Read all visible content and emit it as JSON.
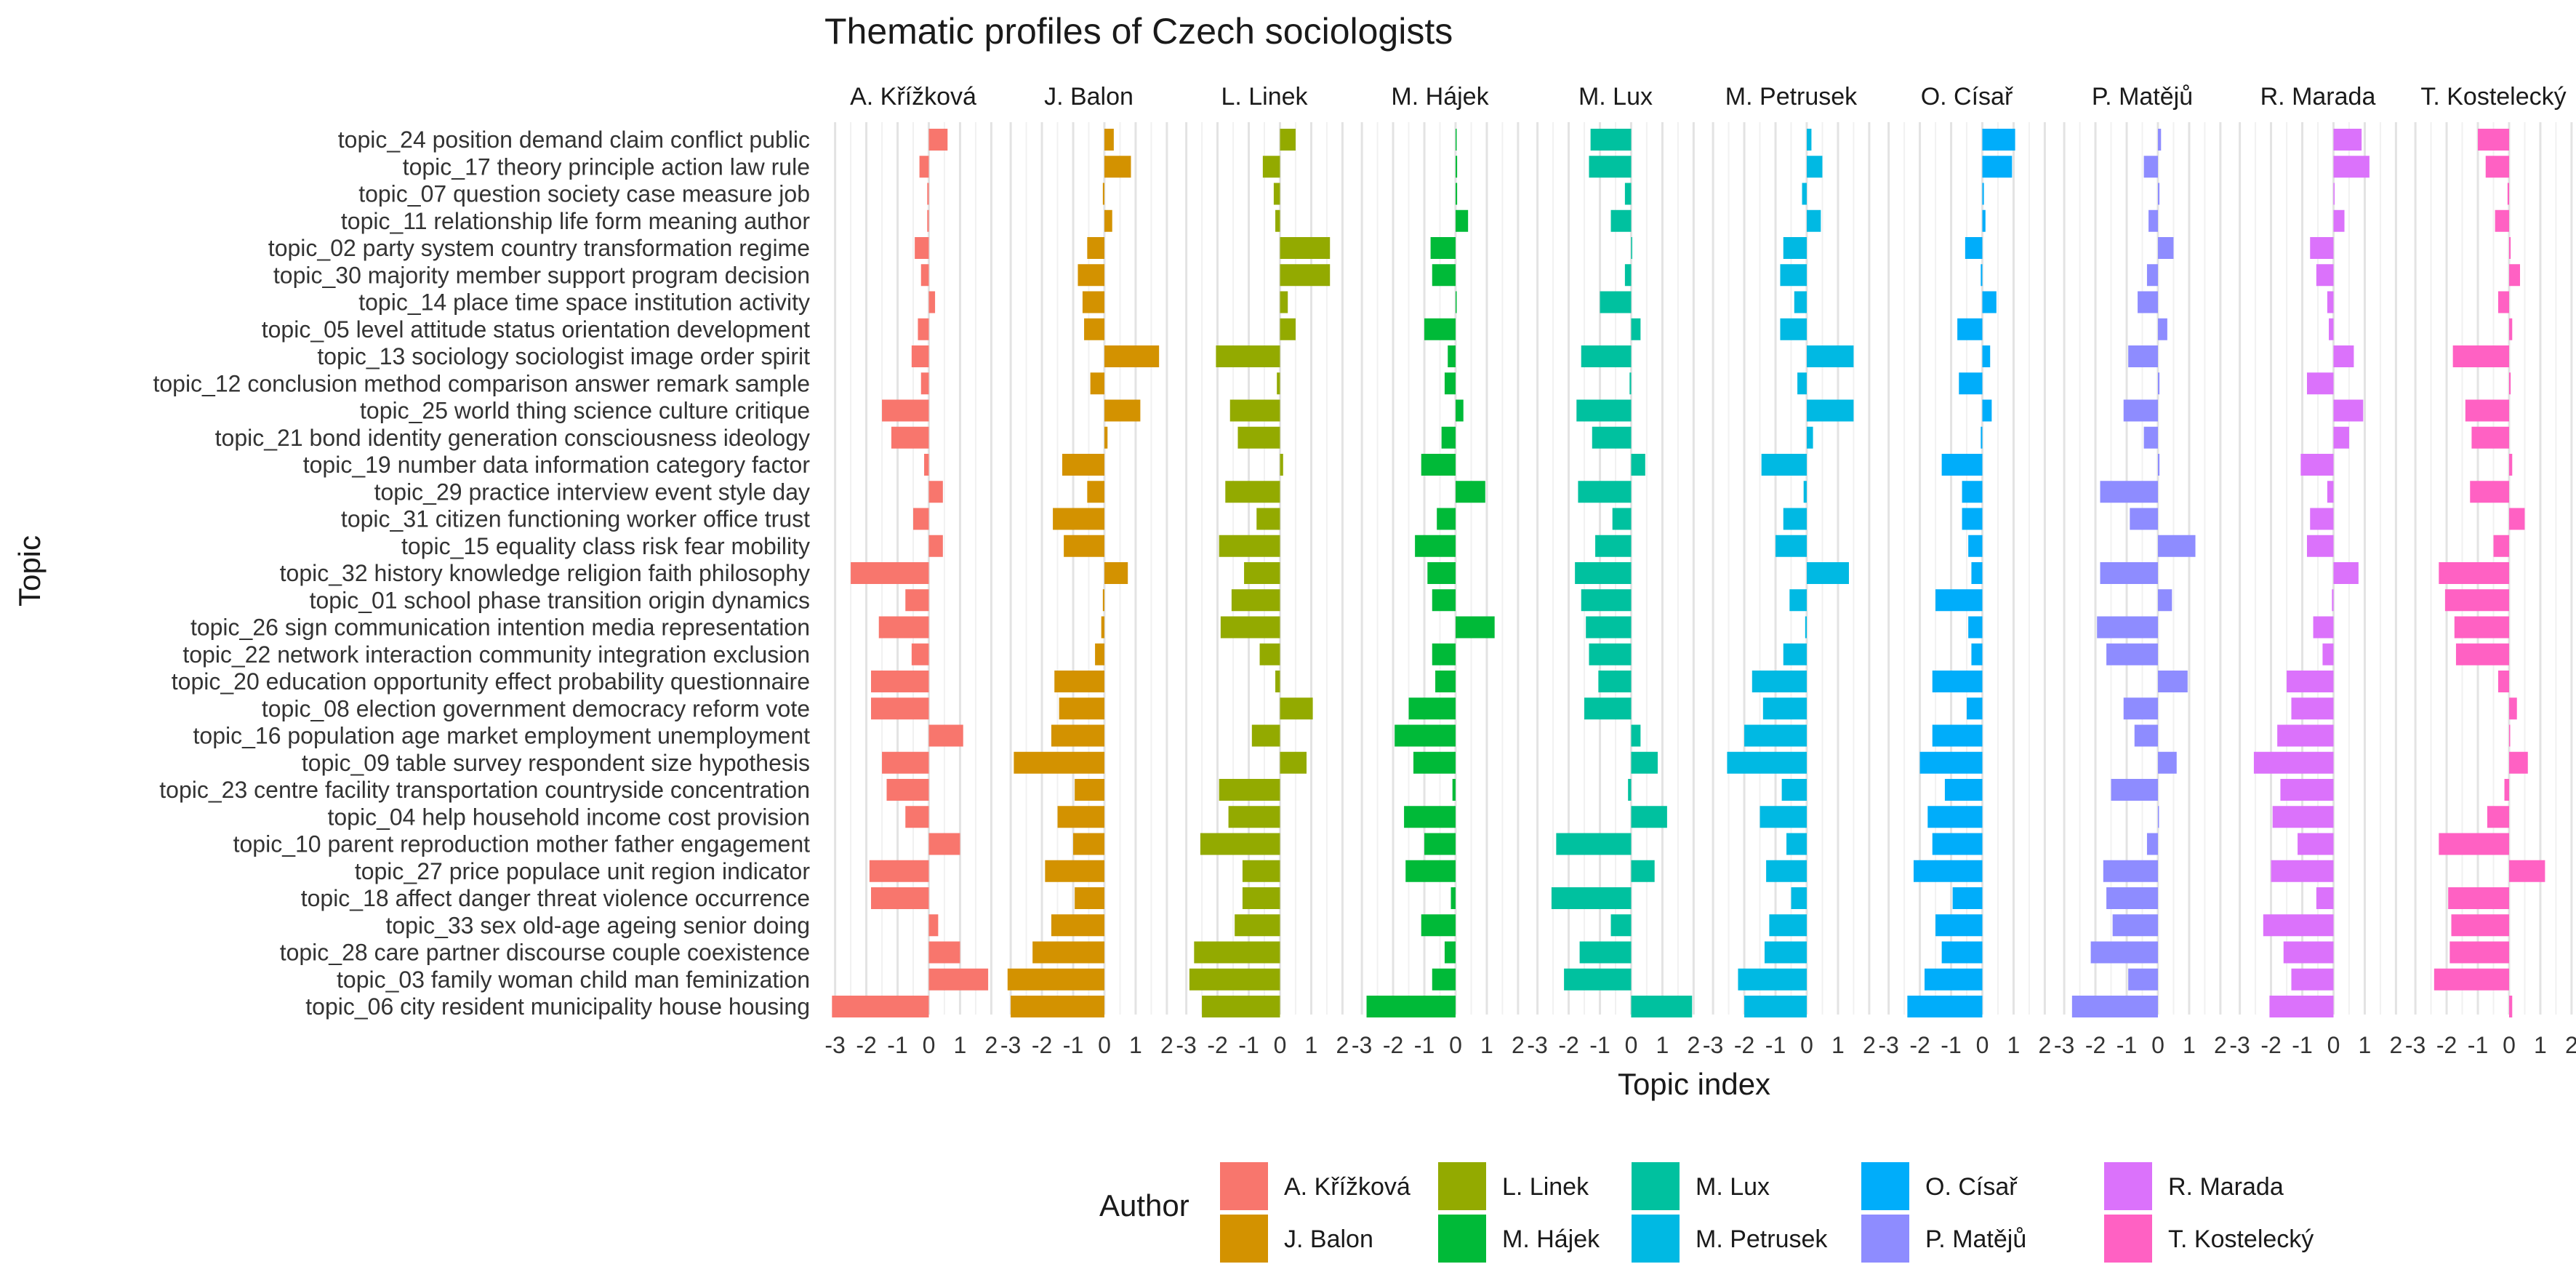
{
  "chart_data": {
    "type": "bar",
    "orientation": "horizontal",
    "title": "Thematic profiles of Czech sociologists",
    "xlabel": "Topic index",
    "ylabel": "Topic",
    "xlim": [
      -3.2,
      2.2
    ],
    "xticks": [
      -3,
      -2,
      -1,
      0,
      1,
      2
    ],
    "grid": true,
    "legend_title": "Author",
    "legend_position": "bottom",
    "facets": [
      "A. Křížková",
      "J. Balon",
      "L. Linek",
      "M. Hájek",
      "M. Lux",
      "M. Petrusek",
      "O. Císař",
      "P. Matějů",
      "R. Marada",
      "T. Kostelecký"
    ],
    "colors": [
      "#F8766D",
      "#D39200",
      "#93AA00",
      "#00BA38",
      "#00C19F",
      "#00B9E3",
      "#00ADFA",
      "#8E8CFF",
      "#DB72FB",
      "#FF61C3"
    ],
    "categories": [
      "topic_24 position demand claim conflict public",
      "topic_17 theory principle action law rule",
      "topic_07 question society case measure job",
      "topic_11 relationship life form meaning author",
      "topic_02 party system country transformation regime",
      "topic_30 majority member support program decision",
      "topic_14 place time space institution activity",
      "topic_05 level attitude status orientation development",
      "topic_13 sociology sociologist image order spirit",
      "topic_12 conclusion method comparison answer remark sample",
      "topic_25 world thing science culture critique",
      "topic_21 bond identity generation consciousness ideology",
      "topic_19 number data information category factor",
      "topic_29 practice interview event style day",
      "topic_31 citizen functioning worker office trust",
      "topic_15 equality class risk fear mobility",
      "topic_32 history knowledge religion faith philosophy",
      "topic_01 school phase transition origin dynamics",
      "topic_26 sign communication intention media representation",
      "topic_22 network interaction community integration exclusion",
      "topic_20 education opportunity effect probability questionnaire",
      "topic_08 election government democracy reform vote",
      "topic_16 population age market employment unemployment",
      "topic_09 table survey respondent size hypothesis",
      "topic_23 centre facility transportation countryside concentration",
      "topic_04 help household income cost provision",
      "topic_10 parent reproduction mother father engagement",
      "topic_27 price populace unit region indicator",
      "topic_18 affect danger threat violence occurrence",
      "topic_33 sex old-age ageing senior doing",
      "topic_28 care partner discourse couple coexistence",
      "topic_03 family woman child man feminization",
      "topic_06 city resident municipality house housing"
    ],
    "series": [
      {
        "name": "A. Křížková",
        "values": [
          0.6,
          -0.3,
          -0.05,
          -0.05,
          -0.45,
          -0.25,
          0.2,
          -0.35,
          -0.55,
          -0.25,
          -1.5,
          -1.2,
          -0.15,
          0.45,
          -0.5,
          0.45,
          -2.5,
          -0.75,
          -1.6,
          -0.55,
          -1.85,
          -1.85,
          1.1,
          -1.5,
          -1.35,
          -0.75,
          1.0,
          -1.9,
          -1.85,
          0.3,
          1.0,
          1.9,
          -3.1
        ]
      },
      {
        "name": "J. Balon",
        "values": [
          0.3,
          0.85,
          -0.05,
          0.25,
          -0.55,
          -0.85,
          -0.7,
          -0.65,
          1.75,
          -0.45,
          1.15,
          0.1,
          -1.35,
          -0.55,
          -1.65,
          -1.3,
          0.75,
          -0.05,
          -0.1,
          -0.3,
          -1.6,
          -1.45,
          -1.7,
          -2.9,
          -0.95,
          -1.5,
          -1.0,
          -1.9,
          -0.95,
          -1.7,
          -2.3,
          -3.1,
          -3.0
        ]
      },
      {
        "name": "L. Linek",
        "values": [
          0.5,
          -0.55,
          -0.2,
          -0.15,
          1.6,
          1.6,
          0.25,
          0.5,
          -2.05,
          -0.1,
          -1.6,
          -1.35,
          0.1,
          -1.75,
          -0.75,
          -1.95,
          -1.15,
          -1.55,
          -1.9,
          -0.65,
          -0.15,
          1.05,
          -0.9,
          0.85,
          -1.95,
          -1.65,
          -2.55,
          -1.2,
          -1.2,
          -1.45,
          -2.75,
          -2.9,
          -2.5
        ]
      },
      {
        "name": "M. Hájek",
        "values": [
          0.0,
          0.05,
          0.05,
          0.4,
          -0.8,
          -0.75,
          0.0,
          -1.0,
          -0.25,
          -0.35,
          0.25,
          -0.45,
          -1.1,
          0.95,
          -0.6,
          -1.3,
          -0.9,
          -0.75,
          1.25,
          -0.75,
          -0.65,
          -1.5,
          -1.95,
          -1.35,
          -0.1,
          -1.65,
          -1.0,
          -1.6,
          -0.15,
          -1.1,
          -0.35,
          -0.75,
          -2.85
        ]
      },
      {
        "name": "M. Lux",
        "values": [
          -1.3,
          -1.35,
          -0.2,
          -0.65,
          0.0,
          -0.2,
          -1.0,
          0.3,
          -1.6,
          -0.05,
          -1.75,
          -1.25,
          0.45,
          -1.7,
          -0.6,
          -1.15,
          -1.8,
          -1.6,
          -1.45,
          -1.35,
          -1.05,
          -1.5,
          0.3,
          0.85,
          -0.1,
          1.15,
          -2.4,
          0.75,
          -2.55,
          -0.65,
          -1.65,
          -2.15,
          1.95
        ]
      },
      {
        "name": "M. Petrusek",
        "values": [
          0.15,
          0.5,
          -0.15,
          0.45,
          -0.75,
          -0.85,
          -0.4,
          -0.85,
          1.5,
          -0.3,
          1.5,
          0.2,
          -1.45,
          -0.1,
          -0.75,
          -1.0,
          1.35,
          -0.55,
          -0.05,
          -0.75,
          -1.75,
          -1.4,
          -2.0,
          -2.55,
          -0.8,
          -1.5,
          -0.65,
          -1.3,
          -0.5,
          -1.2,
          -1.35,
          -2.2,
          -2.0
        ]
      },
      {
        "name": "O. Císař",
        "values": [
          1.05,
          0.95,
          0.05,
          0.1,
          -0.55,
          -0.05,
          0.45,
          -0.8,
          0.25,
          -0.75,
          0.3,
          -0.05,
          -1.3,
          -0.65,
          -0.65,
          -0.45,
          -0.35,
          -1.5,
          -0.45,
          -0.35,
          -1.6,
          -0.5,
          -1.6,
          -2.0,
          -1.2,
          -1.75,
          -1.6,
          -2.2,
          -0.95,
          -1.5,
          -1.3,
          -1.85,
          -2.4
        ]
      },
      {
        "name": "P. Matějů",
        "values": [
          0.1,
          -0.45,
          0.05,
          -0.3,
          0.5,
          -0.35,
          -0.65,
          0.3,
          -0.95,
          0.05,
          -1.1,
          -0.45,
          0.05,
          -1.85,
          -0.9,
          1.2,
          -1.85,
          0.45,
          -1.95,
          -1.65,
          0.95,
          -1.1,
          -0.75,
          0.6,
          -1.5,
          0.0,
          -0.35,
          -1.75,
          -1.65,
          -1.45,
          -2.15,
          -0.95,
          -2.75
        ]
      },
      {
        "name": "R. Marada",
        "values": [
          0.9,
          1.15,
          0.0,
          0.35,
          -0.75,
          -0.55,
          -0.2,
          -0.15,
          0.65,
          -0.85,
          0.95,
          0.5,
          -1.05,
          -0.2,
          -0.75,
          -0.85,
          0.8,
          -0.05,
          -0.65,
          -0.35,
          -1.5,
          -1.35,
          -1.8,
          -2.55,
          -1.7,
          -1.95,
          -1.15,
          -2.0,
          -0.55,
          -2.25,
          -1.6,
          -1.35,
          -2.05
        ]
      },
      {
        "name": "T. Kostelecký",
        "values": [
          -1.0,
          -0.75,
          -0.05,
          -0.45,
          0.05,
          0.35,
          -0.35,
          0.1,
          -1.8,
          0.05,
          -1.4,
          -1.2,
          0.1,
          -1.25,
          0.5,
          -0.5,
          -2.25,
          -2.05,
          -1.75,
          -1.7,
          -0.35,
          0.25,
          0.0,
          0.6,
          -0.15,
          -0.7,
          -2.25,
          1.15,
          -1.95,
          -1.85,
          -1.9,
          -2.4,
          0.1
        ]
      }
    ]
  }
}
